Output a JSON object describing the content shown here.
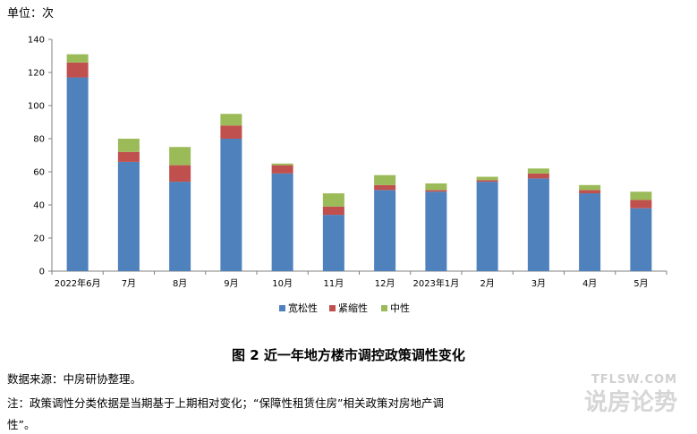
{
  "unit_label": "单位：次",
  "caption": "图 2  近一年地方楼市调控政策调性变化",
  "source_note": "数据来源：中房研协整理。",
  "footnote_line1": "注：政策调性分类依据是当期基于上期相对变化；“保障性租赁住房”相关政策对房地产调",
  "footnote_line2": "性”。",
  "watermark": {
    "en": "TFLSW.COM",
    "cn": "说房论势"
  },
  "colors": {
    "loose": "#4f81bd",
    "tight": "#c0504d",
    "neutral": "#9bbb59"
  },
  "chart_data": {
    "type": "bar",
    "stacked": true,
    "categories": [
      "2022年6月",
      "7月",
      "8月",
      "9月",
      "10月",
      "11月",
      "12月",
      "2023年1月",
      "2月",
      "3月",
      "4月",
      "5月"
    ],
    "series": [
      {
        "name": "宽松性",
        "values": [
          117,
          66,
          54,
          80,
          59,
          34,
          49,
          48,
          54,
          56,
          47,
          38
        ]
      },
      {
        "name": "紧缩性",
        "values": [
          9,
          6,
          10,
          8,
          5,
          5,
          3,
          1,
          1,
          3,
          2,
          5
        ]
      },
      {
        "name": "中性",
        "values": [
          5,
          8,
          11,
          7,
          1,
          8,
          6,
          4,
          2,
          3,
          3,
          5
        ]
      }
    ],
    "y_ticks": [
      0,
      20,
      40,
      60,
      80,
      100,
      120,
      140
    ],
    "ylim": [
      0,
      140
    ],
    "legend_position": "bottom"
  }
}
